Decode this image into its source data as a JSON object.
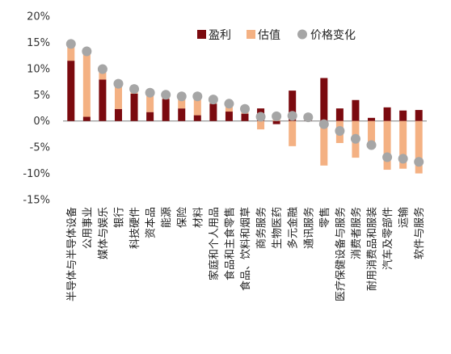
{
  "chart_data": {
    "type": "bar",
    "title": "",
    "xlabel": "",
    "ylabel": "",
    "ylim": [
      -15,
      20
    ],
    "yticks": [
      -15,
      -10,
      -5,
      0,
      5,
      10,
      15,
      20
    ],
    "ytick_labels": [
      "-15%",
      "-10%",
      "-5%",
      "0%",
      "5%",
      "10%",
      "15%",
      "20%"
    ],
    "grid": false,
    "legend_position": "top-right",
    "stacked": true,
    "categories": [
      "半导体与半导体设备",
      "公用事业",
      "媒体与娱乐",
      "银行",
      "科技硬件",
      "资本品",
      "能源",
      "保险",
      "材料",
      "家庭和个人用品",
      "食品和主食零售",
      "食品、饮料和烟草",
      "商务服务",
      "生物医药",
      "多元金融",
      "通讯服务",
      "零售",
      "医疗保健设备与服务",
      "消费者服务",
      "耐用消费品和服装",
      "汽车及零部件",
      "运输",
      "软件与服务"
    ],
    "series": [
      {
        "name": "盈利",
        "color": "#7b0a0f",
        "values": [
          11.5,
          0.8,
          7.9,
          2.3,
          5.2,
          1.7,
          4.2,
          2.4,
          1.1,
          3.3,
          1.8,
          1.4,
          2.4,
          -0.6,
          5.8,
          0.3,
          8.2,
          2.4,
          4.0,
          0.6,
          2.6,
          2.0,
          2.1
        ]
      },
      {
        "name": "估值",
        "color": "#f4b183",
        "values": [
          3.2,
          12.5,
          2.0,
          4.8,
          0.9,
          3.7,
          0.8,
          2.3,
          3.6,
          0.8,
          1.5,
          0.9,
          -1.6,
          1.5,
          -4.8,
          0.4,
          -8.5,
          -4.2,
          -7.0,
          -5.0,
          -9.3,
          -9.1,
          -10.0
        ]
      }
    ],
    "scatter_series": {
      "name": "价格变化",
      "color": "#a6a6a6",
      "values": [
        14.7,
        13.3,
        9.9,
        7.1,
        6.1,
        5.4,
        5.0,
        4.7,
        4.7,
        4.1,
        3.3,
        2.3,
        0.8,
        0.9,
        1.0,
        0.7,
        -0.6,
        -1.9,
        -3.4,
        -4.6,
        -6.9,
        -7.2,
        -7.8
      ]
    }
  }
}
